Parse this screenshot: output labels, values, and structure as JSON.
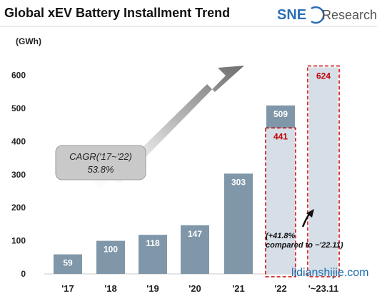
{
  "header": {
    "title": "Global xEV Battery Installment Trend",
    "logo_sne": "SNE",
    "logo_research": "Research"
  },
  "chart_data": {
    "type": "bar",
    "title": "Global xEV Battery Installment Trend",
    "ylabel": "(GWh)",
    "ylim": [
      0,
      650
    ],
    "yticks": [
      0,
      100,
      200,
      300,
      400,
      500,
      600
    ],
    "categories": [
      "'17",
      "'18",
      "'19",
      "'20",
      "'21",
      "'22",
      "'~23.11"
    ],
    "values": [
      59,
      100,
      118,
      147,
      303,
      509,
      624
    ],
    "highlight": {
      "category": "'22",
      "value": 441,
      "value_label": "441",
      "note": "(+41.8% compared to ~'22.11)"
    },
    "projected_value_label": "624",
    "annotation": {
      "line1": "CAGR('17~'22)",
      "line2": "53.8%"
    },
    "bar_color": "#7f97a9",
    "projected_color": "#d6dfe8",
    "highlight_border": "#c00000",
    "grid": false
  },
  "watermark": "lidianshijie.com"
}
